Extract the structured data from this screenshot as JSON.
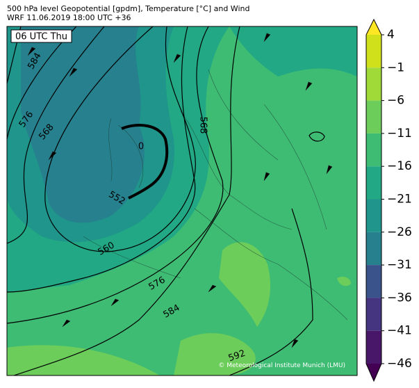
{
  "header": {
    "line1": "500 hPa level Geopotential [gpdm], Temperature [°C] and Wind",
    "line2": "WRF 11.06.2019 18:00 UTC +36"
  },
  "map": {
    "time_label": "06 UTC Thu",
    "contour_labels": [
      "584",
      "576",
      "568",
      "552",
      "560",
      "576",
      "584",
      "592",
      "568",
      "0"
    ],
    "copyright": "© Meteorological Institute Munich (LMU)"
  },
  "colorbar": {
    "ticks": [
      4,
      {
        "value": -1,
        "label": "−1"
      },
      {
        "value": -6,
        "label": "−6"
      },
      {
        "value": -11,
        "label": "−11"
      },
      {
        "value": -16,
        "label": "−16"
      },
      {
        "value": -21,
        "label": "−21"
      },
      {
        "value": -26,
        "label": "−26"
      },
      {
        "value": -31,
        "label": "−31"
      },
      {
        "value": -36,
        "label": "−36"
      },
      {
        "value": -41,
        "label": "−41"
      },
      {
        "value": -46,
        "label": "−46"
      }
    ],
    "colors": [
      "#fde725",
      "#d0e11c",
      "#a0da39",
      "#6ccd5a",
      "#3fbc73",
      "#22a884",
      "#1f958b",
      "#27808e",
      "#3a538b",
      "#453581",
      "#481769",
      "#440154"
    ]
  }
}
